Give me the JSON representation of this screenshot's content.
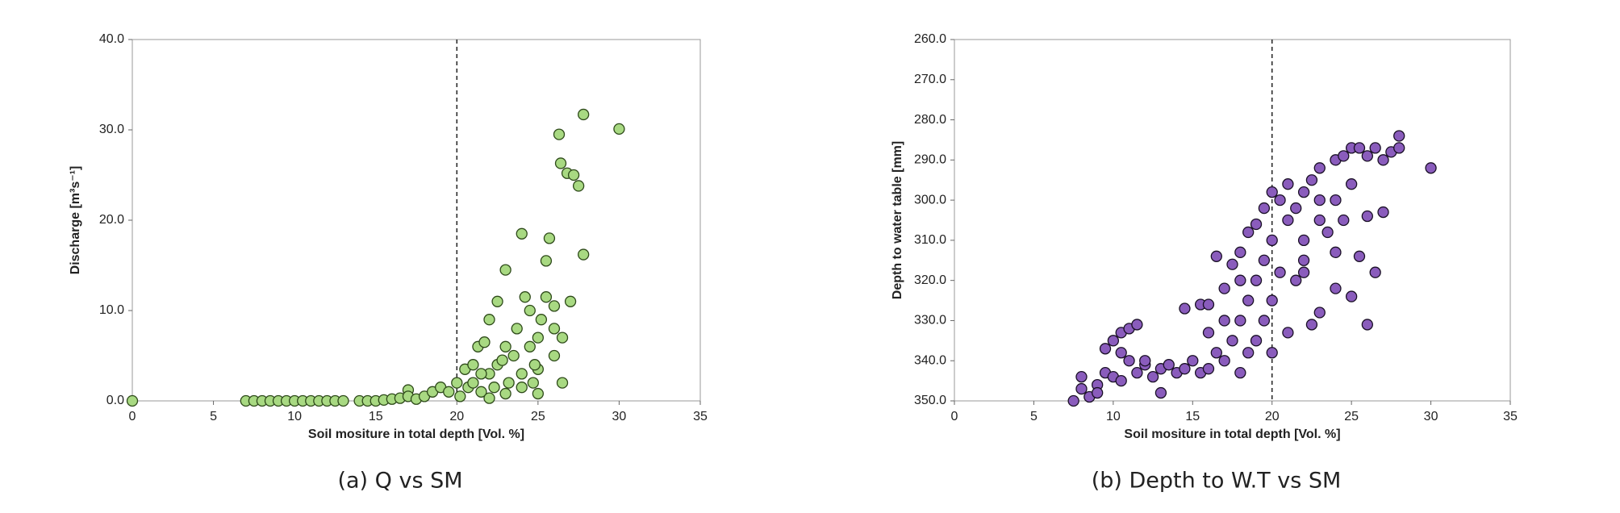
{
  "chart_data": [
    {
      "type": "scatter",
      "caption": "(a) Q vs SM",
      "xlabel": "Soil mositure in total depth [Vol. %]",
      "ylabel": "Discharge [m³s⁻¹]",
      "color": "#a8d982",
      "edgecolor": "#2e4a1a",
      "reference_line_x": 20,
      "xlim": [
        0,
        35
      ],
      "xticks": [
        0,
        5,
        10,
        15,
        20,
        25,
        30,
        35
      ],
      "ylim": [
        0,
        40
      ],
      "yticks": [
        {
          "value": 0,
          "label": "0.0"
        },
        {
          "value": 10,
          "label": "10.0"
        },
        {
          "value": 20,
          "label": "20.0"
        },
        {
          "value": 30,
          "label": "30.0"
        },
        {
          "value": 40,
          "label": "40.0"
        }
      ],
      "x": [
        0,
        7,
        7.5,
        8,
        8.5,
        9,
        9.5,
        10,
        10.5,
        11,
        11.5,
        12,
        12.5,
        13,
        14,
        14.5,
        15,
        15.5,
        16,
        16.5,
        17,
        17,
        17.5,
        18,
        18.5,
        19,
        19.5,
        20,
        20.2,
        20.5,
        20.7,
        21,
        21,
        21.3,
        21.5,
        21.7,
        22,
        22,
        22.3,
        22.5,
        22.5,
        23,
        23,
        23.2,
        23.5,
        23.7,
        24,
        24,
        24.2,
        24.5,
        24.5,
        24.7,
        25,
        25,
        25.2,
        25.5,
        25.5,
        25.7,
        26,
        26,
        26.3,
        26.4,
        26.5,
        26.5,
        26.8,
        27,
        27.2,
        27.5,
        27.8,
        27.8,
        30,
        22,
        23,
        24,
        25,
        21.5,
        22.8,
        24.8,
        26
      ],
      "y": [
        0,
        0,
        0,
        0,
        0,
        0,
        0,
        0,
        0,
        0,
        0,
        0,
        0,
        0,
        0,
        0,
        0,
        0.1,
        0.2,
        0.3,
        1.2,
        0.5,
        0.2,
        0.5,
        1,
        1.5,
        1,
        2,
        0.5,
        3.5,
        1.5,
        4,
        2,
        6,
        1,
        6.5,
        3,
        9,
        1.5,
        11,
        4,
        14.5,
        6,
        2,
        5,
        8,
        18.5,
        3,
        11.5,
        10,
        6,
        2,
        7,
        0.8,
        9,
        11.5,
        15.5,
        18,
        10.5,
        5,
        29.5,
        26.3,
        2,
        7,
        25.2,
        11,
        25,
        23.8,
        16.2,
        31.7,
        30.1,
        0.3,
        0.8,
        1.5,
        3.5,
        3,
        4.5,
        4,
        8
      ]
    },
    {
      "type": "scatter",
      "caption": "(b) Depth to W.T vs SM",
      "xlabel": "Soil mositure in total depth [Vol. %]",
      "ylabel": "Depth to water table [mm]",
      "color": "#8a5cbc",
      "edgecolor": "#1a1026",
      "reference_line_x": 20,
      "xlim": [
        0,
        35
      ],
      "xticks": [
        0,
        5,
        10,
        15,
        20,
        25,
        30,
        35
      ],
      "ylim": [
        350,
        260
      ],
      "yticks": [
        {
          "value": 260,
          "label": "260.0"
        },
        {
          "value": 270,
          "label": "270.0"
        },
        {
          "value": 280,
          "label": "280.0"
        },
        {
          "value": 290,
          "label": "290.0"
        },
        {
          "value": 300,
          "label": "300.0"
        },
        {
          "value": 310,
          "label": "310.0"
        },
        {
          "value": 320,
          "label": "320.0"
        },
        {
          "value": 330,
          "label": "330.0"
        },
        {
          "value": 340,
          "label": "340.0"
        },
        {
          "value": 350,
          "label": "350.0"
        }
      ],
      "x": [
        7.5,
        8,
        8,
        8.5,
        9,
        9.5,
        9.5,
        10,
        10,
        10.5,
        10.5,
        11,
        11,
        11.5,
        11.5,
        12,
        12.5,
        13,
        13,
        13.5,
        14,
        14.5,
        14.5,
        15,
        15.5,
        15.5,
        16,
        16,
        16.5,
        16.5,
        17,
        17,
        17.5,
        17.5,
        18,
        18,
        18,
        18.5,
        18.5,
        18.5,
        19,
        19,
        19,
        19.5,
        19.5,
        19.5,
        20,
        20,
        20,
        20,
        20.5,
        20.5,
        21,
        21,
        21.5,
        21.5,
        22,
        22,
        22,
        22.5,
        22.5,
        23,
        23,
        23,
        23.5,
        24,
        24,
        24,
        24.5,
        24.5,
        25,
        25,
        25,
        25.5,
        25.5,
        26,
        26,
        26,
        26.5,
        26.5,
        27,
        27,
        27.5,
        28,
        28,
        30,
        21,
        18,
        17,
        12,
        10.5,
        9,
        16,
        22,
        24,
        23
      ],
      "y": [
        350,
        347,
        344,
        349,
        346,
        343,
        337,
        335,
        344,
        333,
        345,
        332,
        340,
        331,
        343,
        341,
        344,
        342,
        348,
        341,
        343,
        327,
        342,
        340,
        326,
        343,
        326,
        342,
        314,
        338,
        322,
        340,
        316,
        335,
        313,
        330,
        343,
        308,
        325,
        338,
        306,
        320,
        335,
        302,
        315,
        330,
        298,
        310,
        325,
        338,
        300,
        318,
        305,
        296,
        302,
        320,
        298,
        310,
        315,
        295,
        331,
        292,
        305,
        328,
        308,
        290,
        313,
        322,
        289,
        305,
        287,
        324,
        296,
        287,
        314,
        289,
        304,
        331,
        287,
        318,
        290,
        303,
        288,
        284,
        287,
        292,
        333,
        320,
        330,
        340,
        338,
        348,
        333,
        318,
        300,
        300
      ]
    }
  ]
}
